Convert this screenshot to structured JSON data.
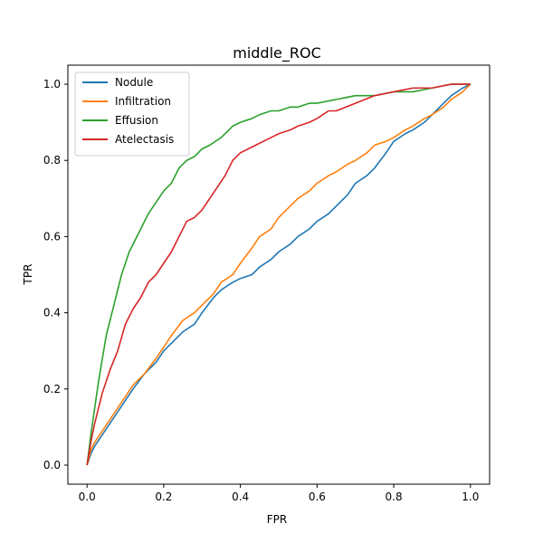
{
  "chart_data": {
    "type": "line",
    "title": "middle_ROC",
    "xlabel": "FPR",
    "ylabel": "TPR",
    "xlim": [
      -0.05,
      1.05
    ],
    "ylim": [
      -0.05,
      1.05
    ],
    "xticks": [
      "0.0",
      "0.2",
      "0.4",
      "0.6",
      "0.8",
      "1.0"
    ],
    "yticks": [
      "0.0",
      "0.2",
      "0.4",
      "0.6",
      "0.8",
      "1.0"
    ],
    "grid": false,
    "legend_position": "upper-left",
    "series": [
      {
        "name": "Nodule",
        "color": "#1f77b4",
        "x": [
          0.0,
          0.01,
          0.02,
          0.04,
          0.06,
          0.08,
          0.1,
          0.12,
          0.15,
          0.18,
          0.2,
          0.22,
          0.25,
          0.28,
          0.3,
          0.33,
          0.35,
          0.38,
          0.4,
          0.43,
          0.45,
          0.48,
          0.5,
          0.53,
          0.55,
          0.58,
          0.6,
          0.63,
          0.65,
          0.68,
          0.7,
          0.73,
          0.75,
          0.78,
          0.8,
          0.83,
          0.85,
          0.88,
          0.9,
          0.93,
          0.95,
          0.98,
          1.0
        ],
        "y": [
          0.0,
          0.03,
          0.05,
          0.08,
          0.11,
          0.14,
          0.17,
          0.2,
          0.24,
          0.27,
          0.3,
          0.32,
          0.35,
          0.37,
          0.4,
          0.44,
          0.46,
          0.48,
          0.49,
          0.5,
          0.52,
          0.54,
          0.56,
          0.58,
          0.6,
          0.62,
          0.64,
          0.66,
          0.68,
          0.71,
          0.74,
          0.76,
          0.78,
          0.82,
          0.85,
          0.87,
          0.88,
          0.9,
          0.92,
          0.95,
          0.97,
          0.99,
          1.0
        ]
      },
      {
        "name": "Infiltration",
        "color": "#ff7f0e",
        "x": [
          0.0,
          0.01,
          0.02,
          0.04,
          0.06,
          0.08,
          0.1,
          0.12,
          0.15,
          0.18,
          0.2,
          0.22,
          0.25,
          0.28,
          0.3,
          0.33,
          0.35,
          0.38,
          0.4,
          0.43,
          0.45,
          0.48,
          0.5,
          0.53,
          0.55,
          0.58,
          0.6,
          0.63,
          0.65,
          0.68,
          0.7,
          0.73,
          0.75,
          0.78,
          0.8,
          0.83,
          0.85,
          0.88,
          0.9,
          0.93,
          0.95,
          0.98,
          1.0
        ],
        "y": [
          0.0,
          0.04,
          0.06,
          0.09,
          0.12,
          0.15,
          0.18,
          0.21,
          0.24,
          0.28,
          0.31,
          0.34,
          0.38,
          0.4,
          0.42,
          0.45,
          0.48,
          0.5,
          0.53,
          0.57,
          0.6,
          0.62,
          0.65,
          0.68,
          0.7,
          0.72,
          0.74,
          0.76,
          0.77,
          0.79,
          0.8,
          0.82,
          0.84,
          0.85,
          0.86,
          0.88,
          0.89,
          0.91,
          0.92,
          0.94,
          0.96,
          0.98,
          1.0
        ]
      },
      {
        "name": "Effusion",
        "color": "#2ca02c",
        "x": [
          0.0,
          0.01,
          0.02,
          0.03,
          0.04,
          0.05,
          0.06,
          0.07,
          0.08,
          0.09,
          0.1,
          0.11,
          0.12,
          0.14,
          0.16,
          0.18,
          0.2,
          0.22,
          0.24,
          0.26,
          0.28,
          0.3,
          0.32,
          0.35,
          0.38,
          0.4,
          0.43,
          0.45,
          0.48,
          0.5,
          0.53,
          0.55,
          0.58,
          0.6,
          0.65,
          0.7,
          0.75,
          0.8,
          0.85,
          0.9,
          0.95,
          1.0
        ],
        "y": [
          0.0,
          0.08,
          0.15,
          0.22,
          0.28,
          0.34,
          0.38,
          0.42,
          0.46,
          0.5,
          0.53,
          0.56,
          0.58,
          0.62,
          0.66,
          0.69,
          0.72,
          0.74,
          0.78,
          0.8,
          0.81,
          0.83,
          0.84,
          0.86,
          0.89,
          0.9,
          0.91,
          0.92,
          0.93,
          0.93,
          0.94,
          0.94,
          0.95,
          0.95,
          0.96,
          0.97,
          0.97,
          0.98,
          0.98,
          0.99,
          1.0,
          1.0
        ]
      },
      {
        "name": "Atelectasis",
        "color": "#d62728",
        "x": [
          0.0,
          0.01,
          0.02,
          0.03,
          0.04,
          0.05,
          0.06,
          0.08,
          0.1,
          0.12,
          0.14,
          0.16,
          0.18,
          0.2,
          0.22,
          0.24,
          0.26,
          0.28,
          0.3,
          0.32,
          0.34,
          0.36,
          0.38,
          0.4,
          0.42,
          0.44,
          0.46,
          0.48,
          0.5,
          0.53,
          0.55,
          0.58,
          0.6,
          0.63,
          0.65,
          0.7,
          0.75,
          0.8,
          0.85,
          0.9,
          0.95,
          1.0
        ],
        "y": [
          0.0,
          0.06,
          0.11,
          0.15,
          0.19,
          0.22,
          0.25,
          0.3,
          0.37,
          0.41,
          0.44,
          0.48,
          0.5,
          0.53,
          0.56,
          0.6,
          0.64,
          0.65,
          0.67,
          0.7,
          0.73,
          0.76,
          0.8,
          0.82,
          0.83,
          0.84,
          0.85,
          0.86,
          0.87,
          0.88,
          0.89,
          0.9,
          0.91,
          0.93,
          0.93,
          0.95,
          0.97,
          0.98,
          0.99,
          0.99,
          1.0,
          1.0
        ]
      }
    ]
  }
}
